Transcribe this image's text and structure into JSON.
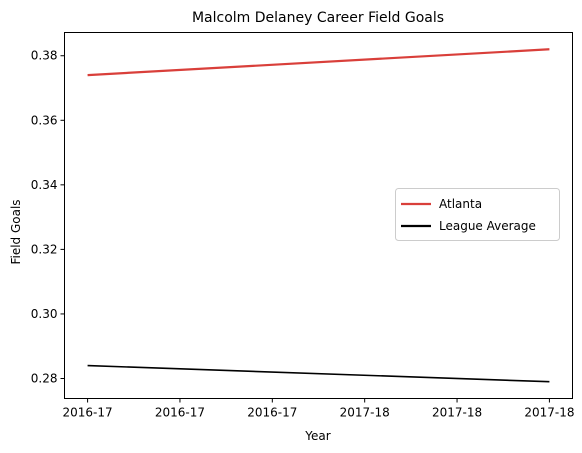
{
  "chart_data": {
    "type": "line",
    "title": "Malcolm Delaney Career Field Goals",
    "xlabel": "Year",
    "ylabel": "Field Goals",
    "x_tick_labels": [
      "2016-17",
      "2016-17",
      "2016-17",
      "2017-18",
      "2017-18",
      "2017-18"
    ],
    "x": [
      0,
      1
    ],
    "xlim": [
      -0.05,
      1.05
    ],
    "ylim": [
      0.2738,
      0.3872
    ],
    "y_ticks": [
      0.28,
      0.3,
      0.32,
      0.34,
      0.36,
      0.38
    ],
    "y_tick_labels": [
      "0.28",
      "0.30",
      "0.32",
      "0.34",
      "0.36",
      "0.38"
    ],
    "series": [
      {
        "name": "Atlanta",
        "values": [
          0.374,
          0.382
        ],
        "color": "#d93f3a"
      },
      {
        "name": "League Average",
        "values": [
          0.284,
          0.279
        ],
        "color": "#000000"
      }
    ],
    "legend_position": "center-right",
    "grid": false
  }
}
